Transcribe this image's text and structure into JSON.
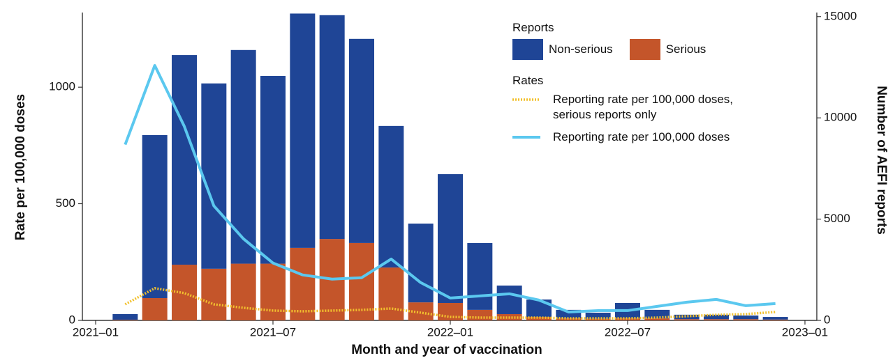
{
  "chart_data": {
    "type": "bar",
    "x_label": "Month and year of vaccination",
    "y_label": "Rate per 100,000 doses",
    "y2_label": "Number of AEFI reports",
    "x": [
      "2021-02",
      "2021-03",
      "2021-04",
      "2021-05",
      "2021-06",
      "2021-07",
      "2021-08",
      "2021-09",
      "2021-10",
      "2021-11",
      "2021-12",
      "2022-01",
      "2022-02",
      "2022-03",
      "2022-04",
      "2022-05",
      "2022-06",
      "2022-07",
      "2022-08",
      "2022-09",
      "2022-10",
      "2022-11",
      "2022-12"
    ],
    "xticks": [
      {
        "value": "2021-01",
        "label": "2021–01"
      },
      {
        "value": "2021-07",
        "label": "2021–07"
      },
      {
        "value": "2022-01",
        "label": "2022–01"
      },
      {
        "value": "2022-07",
        "label": "2022–07"
      },
      {
        "value": "2023-01",
        "label": "2023–01"
      }
    ],
    "ylim": [
      0,
      1320
    ],
    "yticks": [
      0,
      500,
      1000
    ],
    "y2lim": [
      0,
      15200
    ],
    "y2ticks": [
      0,
      5000,
      10000,
      15000
    ],
    "legend": "upper right",
    "groups": [
      {
        "title": "Reports",
        "type": "bar",
        "axis": "y2",
        "series": [
          {
            "name": "Non-serious",
            "color": "#1f4596",
            "values": [
              280,
              8050,
              10350,
              9150,
              10550,
              9270,
              11570,
              11050,
              10080,
              6990,
              3890,
              6360,
              3300,
              1410,
              860,
              420,
              300,
              760,
              420,
              220,
              220,
              180,
              130
            ]
          },
          {
            "name": "Serious",
            "color": "#c4552a",
            "values": [
              30,
              1100,
              2750,
              2550,
              2800,
              2800,
              3580,
              4020,
              3820,
              2610,
              890,
              860,
              520,
              310,
              170,
              100,
              80,
              100,
              100,
              60,
              60,
              60,
              40
            ]
          }
        ]
      },
      {
        "title": "Rates",
        "type": "line",
        "axis": "y",
        "series": [
          {
            "name": "Reporting rate per 100,000 doses, serious reports only",
            "color": "#f2c12e",
            "style": "dotted",
            "values": [
              69,
              138,
              117,
              69,
              54,
              42,
              39,
              42,
              45,
              51,
              33,
              15,
              12,
              12,
              12,
              9,
              9,
              9,
              12,
              18,
              24,
              27,
              36
            ]
          },
          {
            "name": "Reporting rate per 100,000 doses",
            "color": "#5bc8ef",
            "style": "solid",
            "values": [
              754,
              1093,
              832,
              491,
              350,
              246,
              195,
              177,
              183,
              263,
              162,
              96,
              105,
              114,
              87,
              36,
              42,
              42,
              60,
              78,
              90,
              63,
              72
            ]
          }
        ]
      }
    ]
  }
}
